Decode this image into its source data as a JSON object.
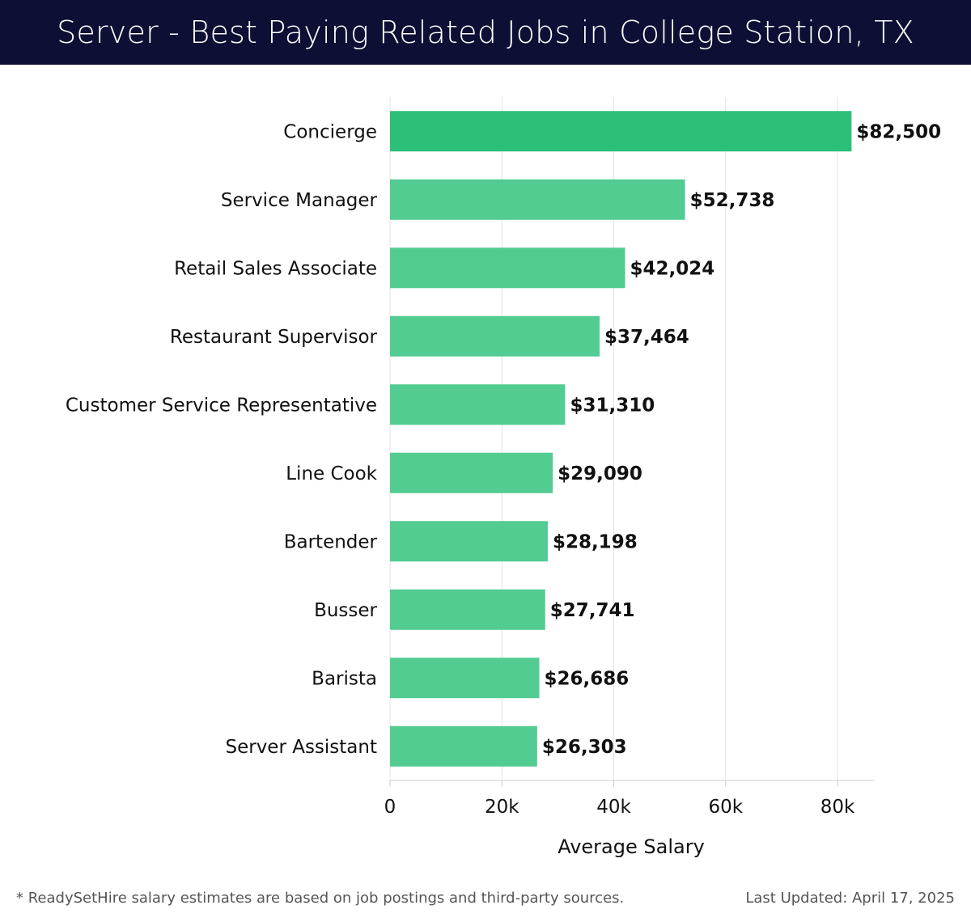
{
  "header": {
    "title": "Server - Best Paying Related Jobs in College Station, TX",
    "background_color": "#0d0f35"
  },
  "chart_data": {
    "type": "bar",
    "orientation": "horizontal",
    "categories": [
      "Concierge",
      "Service Manager",
      "Retail Sales Associate",
      "Restaurant Supervisor",
      "Customer Service Representative",
      "Line Cook",
      "Bartender",
      "Busser",
      "Barista",
      "Server Assistant"
    ],
    "values": [
      82500,
      52738,
      42024,
      37464,
      31310,
      29090,
      28198,
      27741,
      26686,
      26303
    ],
    "value_labels": [
      "$82,500",
      "$52,738",
      "$42,024",
      "$37,464",
      "$31,310",
      "$29,090",
      "$28,198",
      "$27,741",
      "$26,686",
      "$26,303"
    ],
    "xlabel": "Average Salary",
    "ylabel": "",
    "xlim": [
      0,
      86500
    ],
    "xticks": [
      0,
      20000,
      40000,
      60000,
      80000
    ],
    "xtick_labels": [
      "0",
      "20k",
      "40k",
      "60k",
      "80k"
    ],
    "grid": "vertical",
    "highlight_color": "#2bbf78",
    "bar_color": "#52cc91"
  },
  "footer": {
    "note": "* ReadySetHire salary estimates are based on job postings and third-party sources.",
    "updated": "Last Updated: April 17, 2025"
  }
}
